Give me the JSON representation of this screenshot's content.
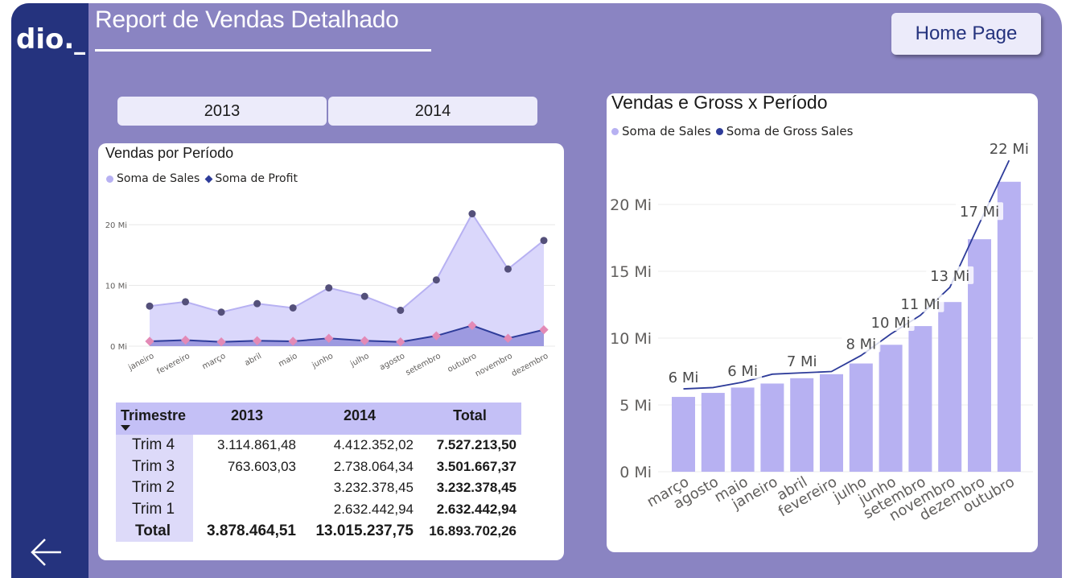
{
  "report": {
    "title": "Report de Vendas Detalhado",
    "home_button": "Home Page",
    "logo_text": "dio._",
    "year_buttons": [
      "2013",
      "2014"
    ],
    "back_icon": "arrow-left-icon"
  },
  "colors": {
    "sidebar": "#25337e",
    "background": "#8a84c2",
    "sales_series": "#b7b1f2",
    "profit_series": "#2e3c9a",
    "bar": "#b7b1f2",
    "line": "#2e3c9a"
  },
  "left_chart": {
    "title": "Vendas por Período",
    "legend": [
      "Soma de  Sales",
      "Soma de Profit"
    ]
  },
  "right_chart": {
    "title": "Vendas e Gross x Período",
    "legend": [
      "Soma de  Sales",
      "Soma de Gross Sales"
    ]
  },
  "chart_data": [
    {
      "type": "area",
      "title": "Vendas por Período",
      "categories": [
        "janeiro",
        "fevereiro",
        "março",
        "abril",
        "maio",
        "junho",
        "julho",
        "agosto",
        "setembro",
        "outubro",
        "novembro",
        "dezembro"
      ],
      "y_ticks": [
        "0 Mi",
        "10 Mi",
        "20 Mi"
      ],
      "ylim": [
        0,
        22
      ],
      "grid": true,
      "legend_position": "top-left",
      "series": [
        {
          "name": "Soma de  Sales",
          "values": [
            6.6,
            7.3,
            5.6,
            7.0,
            6.3,
            9.6,
            8.2,
            5.9,
            10.9,
            21.8,
            12.7,
            17.4
          ]
        },
        {
          "name": "Soma de Profit",
          "values": [
            0.8,
            1.0,
            0.7,
            0.9,
            0.8,
            1.3,
            0.9,
            0.7,
            1.7,
            3.4,
            1.3,
            2.7
          ]
        }
      ]
    },
    {
      "type": "bar",
      "title": "Vendas e Gross x Período",
      "categories": [
        "março",
        "agosto",
        "maio",
        "janeiro",
        "abril",
        "fevereiro",
        "julho",
        "junho",
        "setembro",
        "novembro",
        "dezembro",
        "outubro"
      ],
      "y_ticks": [
        "0 Mi",
        "5 Mi",
        "10 Mi",
        "15 Mi",
        "20 Mi"
      ],
      "ylim": [
        0,
        24
      ],
      "grid": true,
      "legend_position": "top-left",
      "series": [
        {
          "name": "Soma de  Sales",
          "values": [
            5.6,
            5.9,
            6.3,
            6.6,
            7.0,
            7.3,
            8.1,
            9.5,
            10.9,
            12.7,
            17.4,
            21.7
          ]
        },
        {
          "name": "Soma de Gross Sales",
          "values": [
            6.2,
            6.3,
            6.7,
            7.3,
            7.4,
            7.5,
            8.7,
            10.3,
            11.7,
            13.8,
            18.6,
            23.3
          ]
        }
      ],
      "data_labels": [
        "6 Mi",
        "",
        "6 Mi",
        "",
        "7 Mi",
        "",
        "8 Mi",
        "10 Mi",
        "11 Mi",
        "13 Mi",
        "17 Mi",
        "22 Mi"
      ]
    }
  ],
  "table": {
    "header": {
      "row_label": "Trimestre",
      "col_2013": "2013",
      "col_2014": "2014",
      "col_total": "Total"
    },
    "rows": [
      {
        "label": "Trim 4",
        "v2013": "3.114.861,48",
        "v2014": "4.412.352,02",
        "total": "7.527.213,50"
      },
      {
        "label": "Trim 3",
        "v2013": "763.603,03",
        "v2014": "2.738.064,34",
        "total": "3.501.667,37"
      },
      {
        "label": "Trim 2",
        "v2013": "",
        "v2014": "3.232.378,45",
        "total": "3.232.378,45"
      },
      {
        "label": "Trim 1",
        "v2013": "",
        "v2014": "2.632.442,94",
        "total": "2.632.442,94"
      }
    ],
    "total": {
      "label": "Total",
      "v2013": "3.878.464,51",
      "v2014": "13.015.237,75",
      "total": "16.893.702,26"
    }
  }
}
